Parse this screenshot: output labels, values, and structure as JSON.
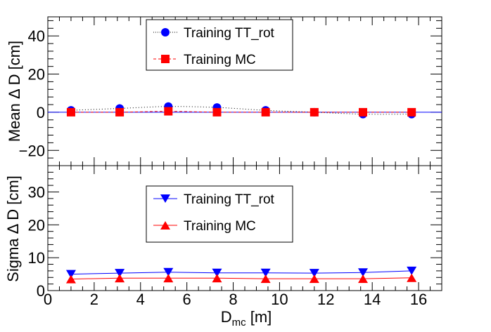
{
  "chart_data": [
    {
      "type": "line",
      "panel": "top",
      "ylabel": "Mean Δ D [cm]",
      "xlabel": "",
      "xlim": [
        0,
        17
      ],
      "ylim": [
        -28,
        50
      ],
      "yticks": [
        -20,
        0,
        20,
        40
      ],
      "ytick_labels": [
        "−20",
        "0",
        "20",
        "40"
      ],
      "reference_line": 0,
      "legend_position": "top-center",
      "series": [
        {
          "name": "Training TT_rot",
          "marker": "circle",
          "line_style": "dotted",
          "color": "#0000ff",
          "x": [
            1.0,
            3.1,
            5.2,
            7.3,
            9.4,
            11.5,
            13.6,
            15.7
          ],
          "y": [
            1.0,
            2.0,
            3.0,
            2.5,
            1.0,
            0.0,
            -1.0,
            -1.0
          ]
        },
        {
          "name": "Training MC",
          "marker": "square",
          "line_style": "dashed",
          "color": "#ff0000",
          "x": [
            1.0,
            3.1,
            5.2,
            7.3,
            9.4,
            11.5,
            13.6,
            15.7
          ],
          "y": [
            0.0,
            0.0,
            0.5,
            0.0,
            0.0,
            0.0,
            0.0,
            0.0
          ]
        }
      ]
    },
    {
      "type": "line",
      "panel": "bottom",
      "ylabel": "Sigma Δ D [cm]",
      "xlabel": "D_mc [m]",
      "xlim": [
        0,
        17
      ],
      "ylim": [
        0,
        38
      ],
      "xticks": [
        0,
        2,
        4,
        6,
        8,
        10,
        12,
        14,
        16
      ],
      "xtick_labels": [
        "0",
        "2",
        "4",
        "6",
        "8",
        "10",
        "12",
        "14",
        "16"
      ],
      "yticks": [
        0,
        10,
        20,
        30
      ],
      "ytick_labels": [
        "0",
        "10",
        "20",
        "30"
      ],
      "legend_position": "center",
      "series": [
        {
          "name": "Training TT_rot",
          "marker": "triangle-down",
          "line_style": "solid",
          "color": "#0000ff",
          "x": [
            1.0,
            3.1,
            5.2,
            7.3,
            9.4,
            11.5,
            13.6,
            15.7
          ],
          "y": [
            5.0,
            5.3,
            5.6,
            5.4,
            5.4,
            5.3,
            5.5,
            6.0
          ]
        },
        {
          "name": "Training MC",
          "marker": "triangle-up",
          "line_style": "solid",
          "color": "#ff0000",
          "x": [
            1.0,
            3.1,
            5.2,
            7.3,
            9.4,
            11.5,
            13.6,
            15.7
          ],
          "y": [
            3.5,
            3.8,
            3.8,
            3.8,
            3.6,
            3.6,
            3.6,
            3.9
          ]
        }
      ]
    }
  ],
  "xlabel_main": "D",
  "xlabel_sub": "mc",
  "xlabel_unit": " [m]"
}
